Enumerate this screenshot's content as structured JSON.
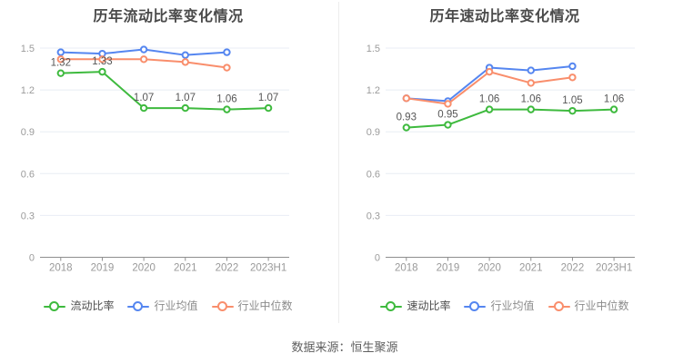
{
  "page": {
    "footer": "数据来源：恒生聚源"
  },
  "palette": {
    "green": "#3eba3e",
    "blue": "#5586f0",
    "orange": "#f98e6c",
    "grid_line": "#e8edf4",
    "axis_line": "#8f8f8f",
    "axis_text": "#9b9b9b",
    "x_axis_text": "#999999",
    "title_text": "#4a4a4a",
    "data_label_text": "#565656"
  },
  "chart_data": [
    {
      "type": "line",
      "title": "历年流动比率变化情况",
      "categories": [
        "2018",
        "2019",
        "2020",
        "2021",
        "2022",
        "2023H1"
      ],
      "ylim": [
        0,
        1.5
      ],
      "yticks": [
        "0",
        "0.3",
        "0.6",
        "0.9",
        "1.2",
        "1.5"
      ],
      "grid": true,
      "legend_position": "bottom",
      "series": [
        {
          "name": "流动比率",
          "color": "#3eba3e",
          "values": [
            1.32,
            1.33,
            1.07,
            1.07,
            1.06,
            1.07
          ],
          "labels": [
            "1.32",
            "1.33",
            "1.07",
            "1.07",
            "1.06",
            "1.07"
          ]
        },
        {
          "name": "行业均值",
          "color": "#5586f0",
          "values": [
            1.47,
            1.46,
            1.49,
            1.45,
            1.47,
            null
          ]
        },
        {
          "name": "行业中位数",
          "color": "#f98e6c",
          "values": [
            1.42,
            1.42,
            1.42,
            1.4,
            1.36,
            null
          ]
        }
      ]
    },
    {
      "type": "line",
      "title": "历年速动比率变化情况",
      "categories": [
        "2018",
        "2019",
        "2020",
        "2021",
        "2022",
        "2023H1"
      ],
      "ylim": [
        0,
        1.5
      ],
      "yticks": [
        "0",
        "0.3",
        "0.6",
        "0.9",
        "1.2",
        "1.5"
      ],
      "grid": true,
      "legend_position": "bottom",
      "series": [
        {
          "name": "速动比率",
          "color": "#3eba3e",
          "values": [
            0.93,
            0.95,
            1.06,
            1.06,
            1.05,
            1.06
          ],
          "labels": [
            "0.93",
            "0.95",
            "1.06",
            "1.06",
            "1.05",
            "1.06"
          ]
        },
        {
          "name": "行业均值",
          "color": "#5586f0",
          "values": [
            1.14,
            1.12,
            1.36,
            1.34,
            1.37,
            null
          ]
        },
        {
          "name": "行业中位数",
          "color": "#f98e6c",
          "values": [
            1.14,
            1.1,
            1.33,
            1.25,
            1.29,
            null
          ]
        }
      ]
    }
  ]
}
